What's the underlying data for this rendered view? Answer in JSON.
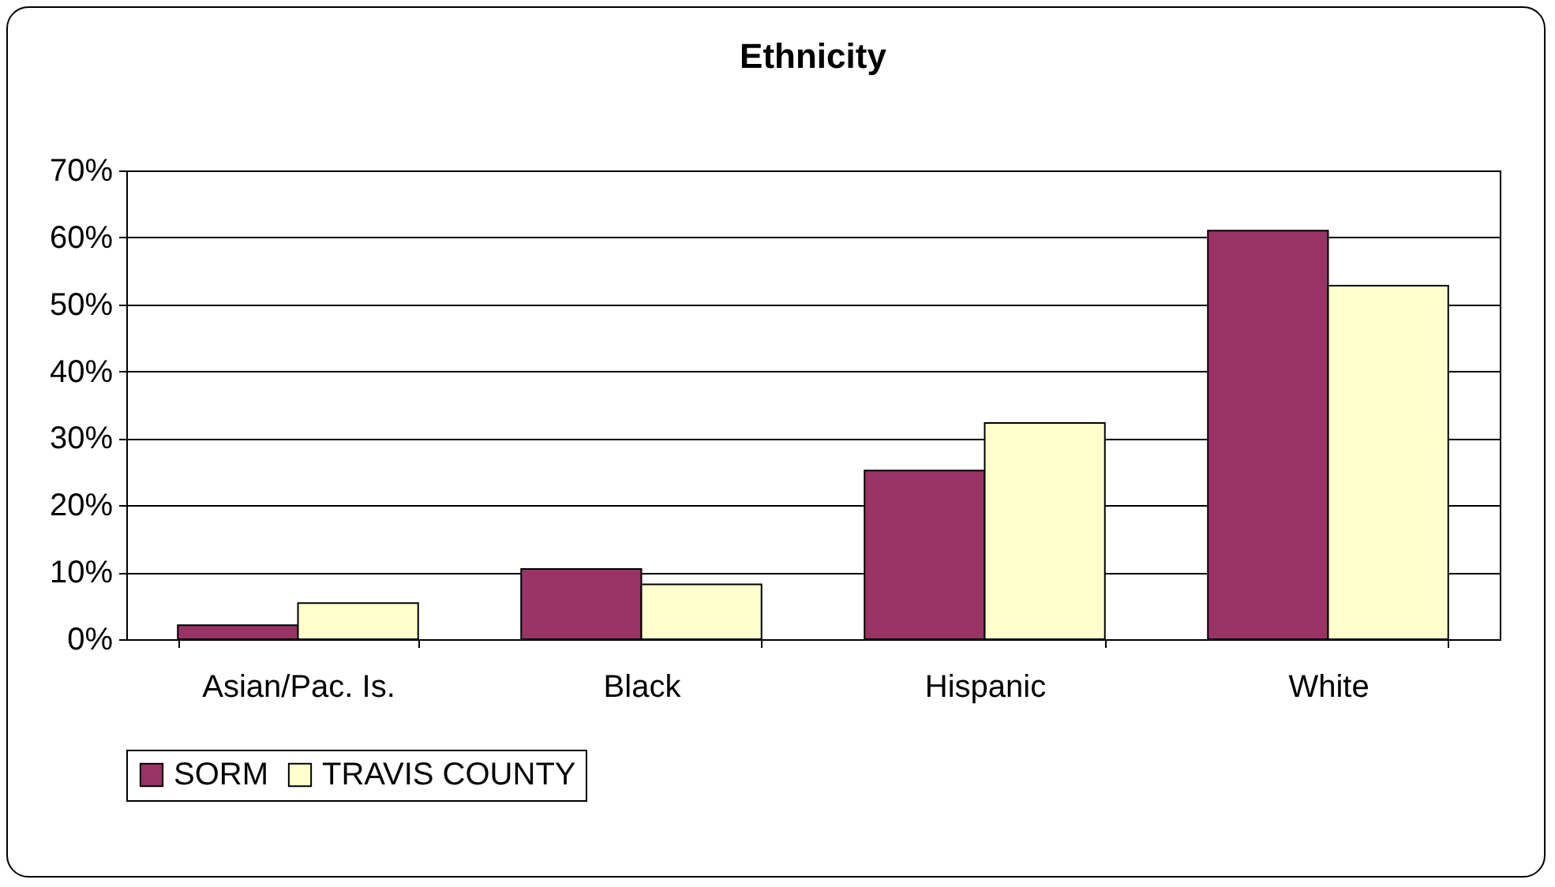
{
  "chart_data": {
    "type": "bar",
    "title": "Ethnicity",
    "categories": [
      "Asian/Pac. Is.",
      "Black",
      "Hispanic",
      "White"
    ],
    "series": [
      {
        "name": "SORM",
        "color": "#993366",
        "values": [
          2.1,
          10.5,
          25.2,
          61
        ]
      },
      {
        "name": "TRAVIS COUNTY",
        "color": "#ffffcc",
        "values": [
          5.4,
          8.2,
          32.3,
          52.8
        ]
      }
    ],
    "ylim": [
      0,
      70
    ],
    "yticks": [
      {
        "value": 0,
        "label": "0%"
      },
      {
        "value": 10,
        "label": "10%"
      },
      {
        "value": 20,
        "label": "20%"
      },
      {
        "value": 30,
        "label": "30%"
      },
      {
        "value": 40,
        "label": "40%"
      },
      {
        "value": 50,
        "label": "50%"
      },
      {
        "value": 60,
        "label": "60%"
      },
      {
        "value": 70,
        "label": "70%"
      }
    ],
    "grid": "y",
    "legend": "bottom"
  }
}
